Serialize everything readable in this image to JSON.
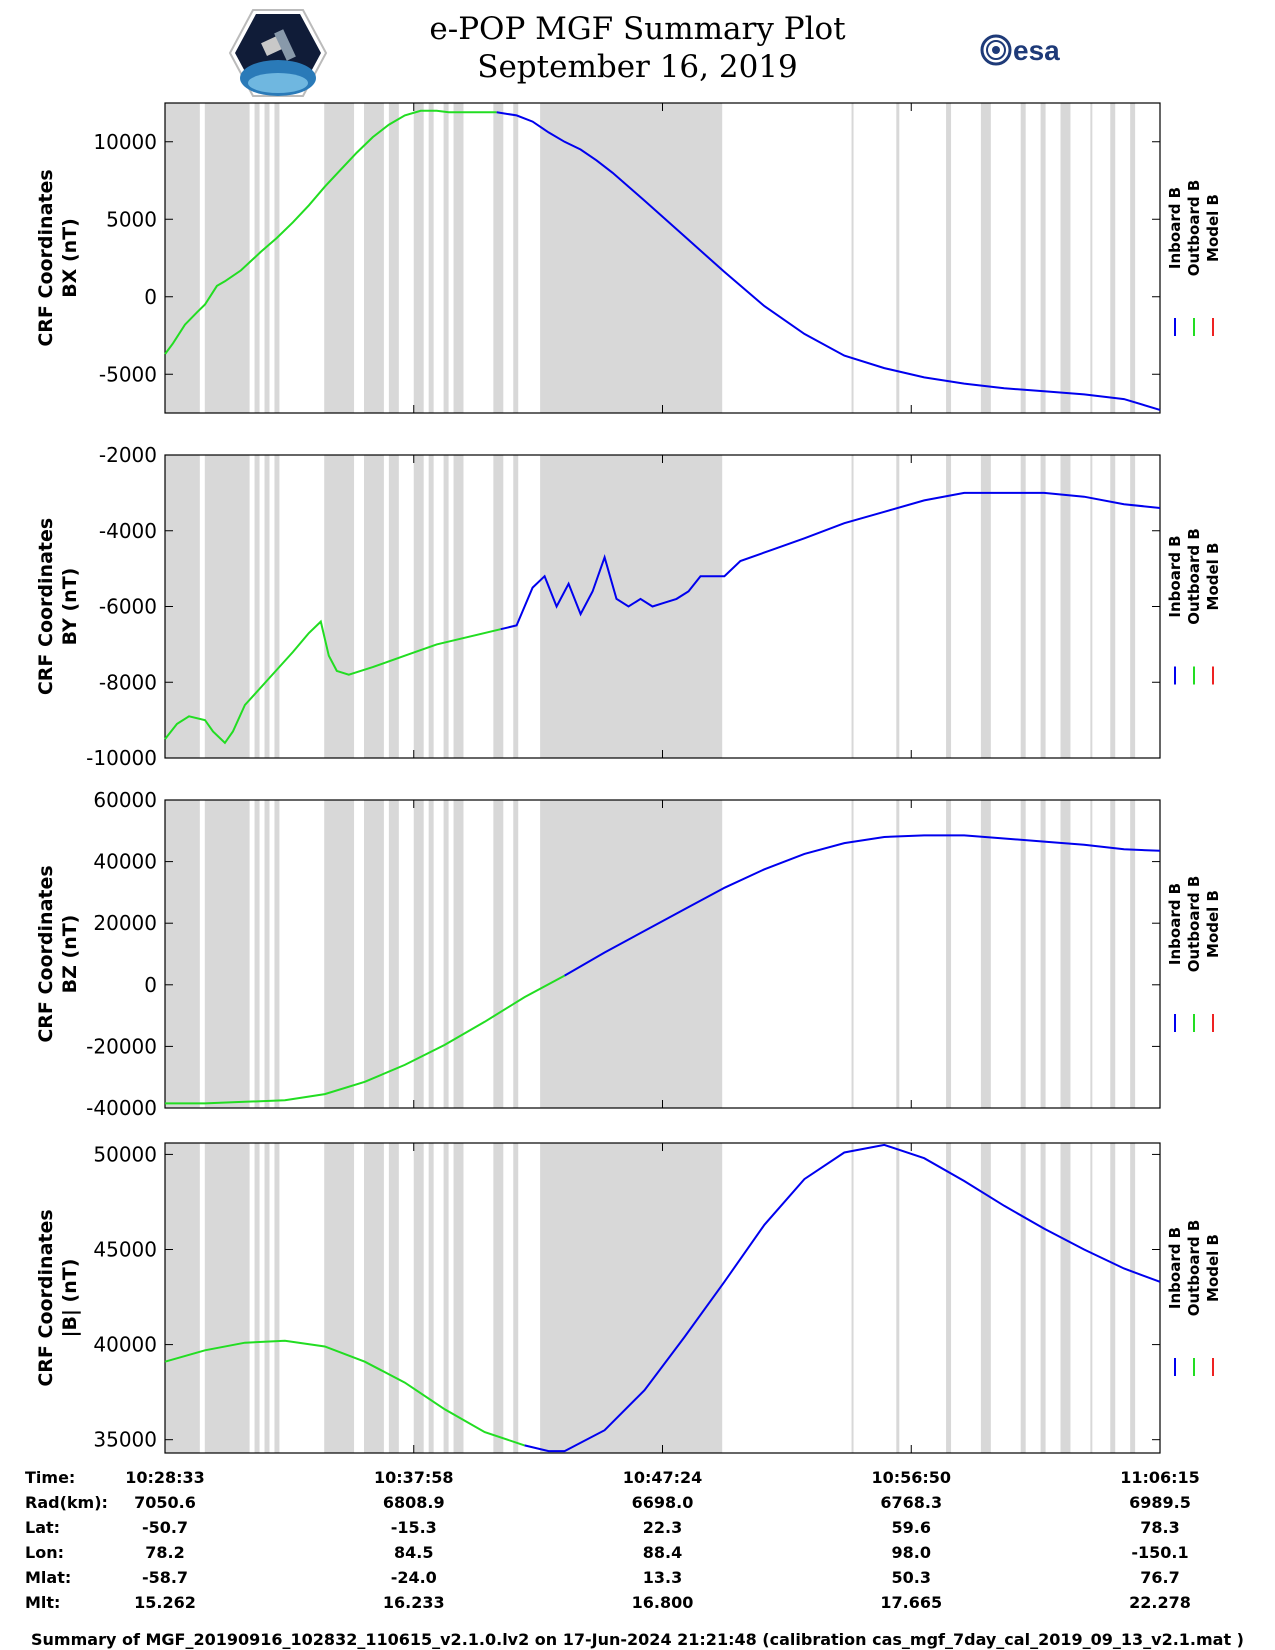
{
  "header": {
    "title": "e-POP MGF Summary Plot",
    "date": "September 16, 2019",
    "left_logo_icon": "cassiope-satellite-logo",
    "right_logo_text": "esa"
  },
  "legend": {
    "inboard": "Inboard B",
    "outboard": "Outboard B",
    "model": "Model B",
    "colors": {
      "inboard": "#0000ee",
      "outboard": "#22dd22",
      "model": "#ee2222"
    }
  },
  "chart_data": [
    {
      "type": "line",
      "title": "BX",
      "ylabel": [
        "CRF Coordinates",
        "BX (nT)"
      ],
      "ylim": [
        -7500,
        12500
      ],
      "yticks": [
        -5000,
        0,
        5000,
        10000
      ],
      "ytick_labels": [
        "-5000",
        "0",
        "5000",
        "10000"
      ],
      "series": [
        {
          "name": "Outboard B",
          "x": [
            0,
            10,
            25,
            40,
            50,
            65,
            75,
            95,
            120,
            140,
            160,
            180,
            200,
            220,
            240,
            260,
            280,
            300,
            320,
            340,
            355,
            370,
            385,
            400,
            415
          ],
          "values": [
            -3700,
            -3000,
            -1800,
            -1000,
            -500,
            700,
            1000,
            1700,
            2900,
            3800,
            4800,
            5900,
            7100,
            8200,
            9300,
            10300,
            11100,
            11700,
            12000,
            12000,
            11900,
            11900,
            11900,
            11900,
            11900
          ]
        },
        {
          "name": "Inboard B",
          "x": [
            415,
            440,
            460,
            480,
            500,
            520,
            540,
            560,
            600,
            650,
            700,
            750,
            800,
            850,
            900,
            950,
            1000,
            1050,
            1100,
            1150,
            1200,
            1245
          ],
          "values": [
            11900,
            11700,
            11300,
            10600,
            10000,
            9500,
            8800,
            8000,
            6200,
            3900,
            1600,
            -600,
            -2400,
            -3800,
            -4600,
            -5200,
            -5600,
            -5900,
            -6100,
            -6300,
            -6600,
            -7300
          ]
        }
      ]
    },
    {
      "type": "line",
      "title": "BY",
      "ylabel": [
        "CRF Coordinates",
        "BY (nT)"
      ],
      "ylim": [
        -10000,
        -2000
      ],
      "yticks": [
        -10000,
        -8000,
        -6000,
        -4000,
        -2000
      ],
      "ytick_labels": [
        "-10000",
        "-8000",
        "-6000",
        "-4000",
        "-2000"
      ],
      "series": [
        {
          "name": "Outboard B",
          "x": [
            0,
            15,
            30,
            50,
            60,
            75,
            85,
            100,
            130,
            160,
            180,
            195,
            205,
            215,
            230,
            260,
            300,
            340,
            380,
            420
          ],
          "values": [
            -9500,
            -9100,
            -8900,
            -9000,
            -9300,
            -9600,
            -9300,
            -8600,
            -7900,
            -7200,
            -6700,
            -6400,
            -7300,
            -7700,
            -7800,
            -7600,
            -7300,
            -7000,
            -6800,
            -6600
          ]
        },
        {
          "name": "Inboard B",
          "x": [
            420,
            440,
            460,
            475,
            490,
            505,
            520,
            535,
            550,
            565,
            580,
            595,
            610,
            625,
            640,
            655,
            670,
            685,
            700,
            720,
            760,
            800,
            850,
            900,
            950,
            1000,
            1050,
            1100,
            1150,
            1200,
            1245
          ],
          "values": [
            -6600,
            -6500,
            -5500,
            -5200,
            -6000,
            -5400,
            -6200,
            -5600,
            -4700,
            -5800,
            -6000,
            -5800,
            -6000,
            -5900,
            -5800,
            -5600,
            -5200,
            -5200,
            -5200,
            -4800,
            -4500,
            -4200,
            -3800,
            -3500,
            -3200,
            -3000,
            -3000,
            -3000,
            -3100,
            -3300,
            -3400
          ]
        }
      ]
    },
    {
      "type": "line",
      "title": "BZ",
      "ylabel": [
        "CRF Coordinates",
        "BZ (nT)"
      ],
      "ylim": [
        -40000,
        60000
      ],
      "yticks": [
        -40000,
        -20000,
        0,
        20000,
        40000,
        60000
      ],
      "ytick_labels": [
        "-40000",
        "-20000",
        "0",
        "20000",
        "40000",
        "60000"
      ],
      "series": [
        {
          "name": "Outboard B",
          "x": [
            0,
            50,
            100,
            150,
            200,
            250,
            300,
            350,
            400,
            450,
            500
          ],
          "values": [
            -38500,
            -38500,
            -38000,
            -37500,
            -35500,
            -31500,
            -26000,
            -19500,
            -12000,
            -4000,
            3000
          ]
        },
        {
          "name": "Inboard B",
          "x": [
            500,
            550,
            600,
            650,
            700,
            750,
            800,
            850,
            900,
            950,
            1000,
            1050,
            1100,
            1150,
            1200,
            1245
          ],
          "values": [
            3000,
            10500,
            17500,
            24500,
            31500,
            37500,
            42500,
            46000,
            48000,
            48500,
            48500,
            47500,
            46500,
            45500,
            44000,
            43500
          ]
        }
      ]
    },
    {
      "type": "line",
      "title": "|B|",
      "ylabel": [
        "CRF Coordinates",
        "|B| (nT)"
      ],
      "ylim": [
        34300,
        50600
      ],
      "yticks": [
        35000,
        40000,
        45000,
        50000
      ],
      "ytick_labels": [
        "35000",
        "40000",
        "45000",
        "50000"
      ],
      "series": [
        {
          "name": "Outboard B",
          "x": [
            0,
            50,
            100,
            150,
            200,
            250,
            300,
            350,
            400,
            450
          ],
          "values": [
            39100,
            39700,
            40100,
            40200,
            39900,
            39100,
            38000,
            36600,
            35400,
            34700
          ]
        },
        {
          "name": "Inboard B",
          "x": [
            450,
            480,
            500,
            550,
            600,
            650,
            700,
            750,
            800,
            850,
            900,
            950,
            1000,
            1050,
            1100,
            1150,
            1200,
            1245
          ],
          "values": [
            34700,
            34400,
            34400,
            35500,
            37600,
            40400,
            43300,
            46300,
            48700,
            50100,
            50500,
            49800,
            48600,
            47300,
            46100,
            45000,
            44000,
            43300
          ]
        }
      ]
    }
  ],
  "info": {
    "labels": [
      "Time:",
      "Rad(km):",
      "Lat:",
      "Lon:",
      "Mlat:",
      "Mlt:"
    ],
    "columns": [
      [
        "10:28:33",
        "7050.6",
        "-50.7",
        "78.2",
        "-58.7",
        "15.262"
      ],
      [
        "10:37:58",
        "6808.9",
        "-15.3",
        "84.5",
        "-24.0",
        "16.233"
      ],
      [
        "10:47:24",
        "6698.0",
        "22.3",
        "88.4",
        "13.3",
        "16.800"
      ],
      [
        "10:56:50",
        "6768.3",
        "59.6",
        "98.0",
        "50.3",
        "17.665"
      ],
      [
        "11:06:15",
        "6989.5",
        "78.3",
        "-150.1",
        "76.7",
        "22.278"
      ]
    ]
  },
  "footer": "Summary of MGF_20190916_102832_110615_v2.1.0.lv2 on 17-Jun-2024 21:21:48 (calibration cas_mgf_7day_cal_2019_09_13_v2.1.mat )"
}
